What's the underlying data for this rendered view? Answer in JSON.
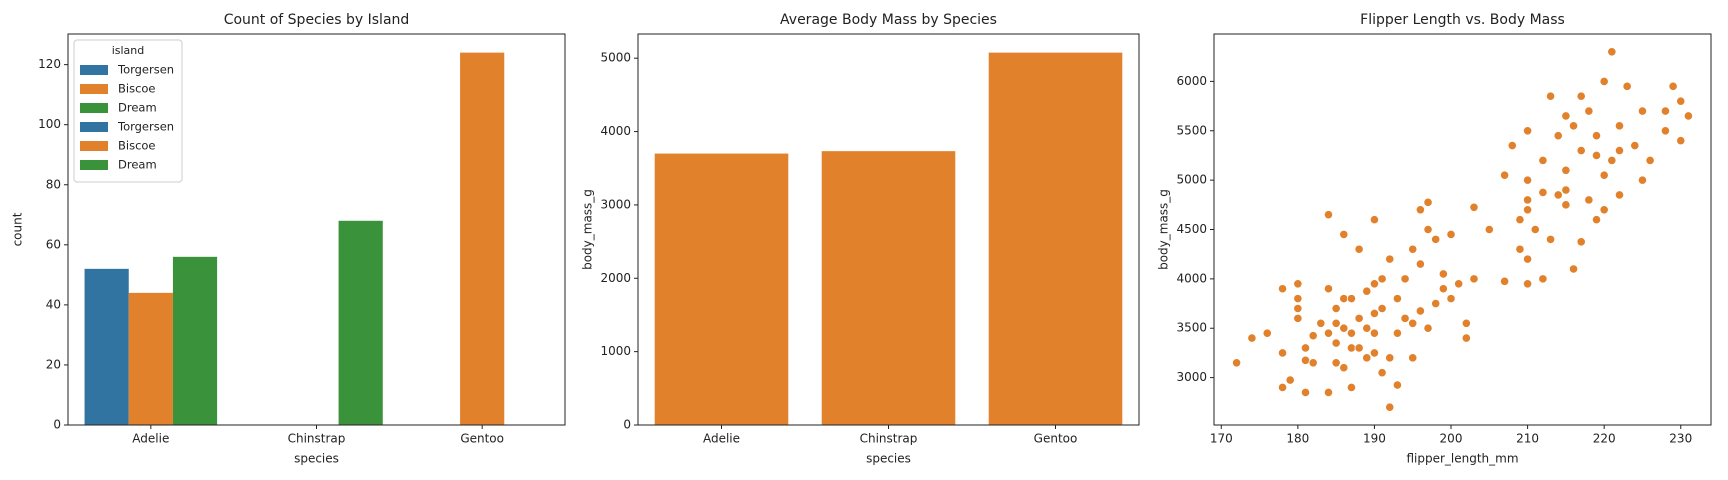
{
  "chart_data": [
    {
      "type": "bar",
      "title": "Count of Species by Island",
      "xlabel": "species",
      "ylabel": "count",
      "categories": [
        "Adelie",
        "Chinstrap",
        "Gentoo"
      ],
      "series": [
        {
          "name": "Torgersen",
          "color": "#3274a1",
          "values": [
            52,
            null,
            null
          ]
        },
        {
          "name": "Biscoe",
          "color": "#e1812c",
          "values": [
            44,
            null,
            124
          ]
        },
        {
          "name": "Dream",
          "color": "#3a923a",
          "values": [
            56,
            68,
            null
          ]
        }
      ],
      "legend": {
        "title": "island",
        "position": "upper left",
        "entries": [
          {
            "name": "Torgersen",
            "color": "#3274a1"
          },
          {
            "name": "Biscoe",
            "color": "#e1812c"
          },
          {
            "name": "Dream",
            "color": "#3a923a"
          },
          {
            "name": "Torgersen",
            "color": "#3274a1"
          },
          {
            "name": "Biscoe",
            "color": "#e1812c"
          },
          {
            "name": "Dream",
            "color": "#3a923a"
          }
        ]
      },
      "ylim": [
        0,
        130.2
      ],
      "yticks": [
        0,
        20,
        40,
        60,
        80,
        100,
        120
      ]
    },
    {
      "type": "bar",
      "title": "Average Body Mass by Species",
      "xlabel": "species",
      "ylabel": "body_mass_g",
      "categories": [
        "Adelie",
        "Chinstrap",
        "Gentoo"
      ],
      "series": [
        {
          "name": "body_mass_g",
          "color": "#e1812c",
          "values": [
            3700,
            3733,
            5076
          ]
        }
      ],
      "ylim": [
        0,
        5330
      ],
      "yticks": [
        0,
        1000,
        2000,
        3000,
        4000,
        5000
      ]
    },
    {
      "type": "scatter",
      "title": "Flipper Length vs. Body Mass",
      "xlabel": "flipper_length_mm",
      "ylabel": "body_mass_g",
      "color": "#e1812c",
      "x": [
        172,
        174,
        176,
        178,
        178,
        178,
        179,
        180,
        180,
        180,
        180,
        181,
        181,
        181,
        182,
        182,
        183,
        184,
        184,
        184,
        184,
        185,
        185,
        185,
        185,
        186,
        186,
        186,
        186,
        187,
        187,
        187,
        187,
        188,
        188,
        188,
        189,
        189,
        189,
        190,
        190,
        190,
        190,
        190,
        191,
        191,
        191,
        192,
        192,
        192,
        193,
        193,
        193,
        194,
        194,
        195,
        195,
        195,
        196,
        196,
        196,
        197,
        197,
        197,
        198,
        198,
        199,
        199,
        200,
        200,
        201,
        202,
        202,
        203,
        203,
        205,
        207,
        210,
        207,
        208,
        209,
        209,
        210,
        210,
        210,
        210,
        211,
        212,
        212,
        213,
        214,
        214,
        215,
        215,
        215,
        216,
        216,
        217,
        217,
        218,
        218,
        219,
        219,
        220,
        220,
        220,
        221,
        221,
        222,
        222,
        223,
        224,
        225,
        225,
        226,
        228,
        228,
        229,
        230,
        230,
        231,
        212,
        215,
        217,
        213,
        219,
        222,
        210
      ],
      "y": [
        3150,
        3400,
        3450,
        3250,
        2900,
        3900,
        2975,
        3600,
        3700,
        3800,
        3950,
        3300,
        3175,
        2850,
        3150,
        3425,
        3550,
        4650,
        3900,
        3450,
        2850,
        3700,
        3550,
        3150,
        3350,
        4450,
        3800,
        3100,
        3500,
        3300,
        3450,
        3800,
        2900,
        3300,
        3600,
        4300,
        3200,
        3500,
        3875,
        3950,
        3650,
        3450,
        3250,
        4600,
        3050,
        3700,
        4000,
        3200,
        4200,
        2700,
        3450,
        3800,
        2925,
        3600,
        4000,
        3200,
        3550,
        4300,
        3675,
        4150,
        4700,
        3500,
        4500,
        4775,
        3750,
        4400,
        3900,
        4050,
        3800,
        4450,
        3950,
        3400,
        3550,
        4000,
        4725,
        4500,
        3975,
        4700,
        5050,
        5350,
        4600,
        4300,
        4200,
        4800,
        5000,
        5500,
        4500,
        4875,
        5200,
        4400,
        4850,
        5450,
        4750,
        5100,
        5650,
        4100,
        5550,
        4375,
        5850,
        4800,
        5700,
        5250,
        5450,
        4700,
        5050,
        6000,
        5200,
        6300,
        5550,
        5300,
        5950,
        5350,
        5000,
        5700,
        5200,
        5500,
        5700,
        5950,
        5800,
        5400,
        5650,
        4000,
        4900,
        5300,
        5850,
        4600,
        4850,
        3950
      ],
      "xlim": [
        169.05,
        233.95
      ],
      "xticks": [
        170,
        180,
        190,
        200,
        210,
        220,
        230
      ],
      "ylim": [
        2520,
        6480
      ],
      "yticks": [
        3000,
        3500,
        4000,
        4500,
        5000,
        5500,
        6000
      ]
    }
  ]
}
